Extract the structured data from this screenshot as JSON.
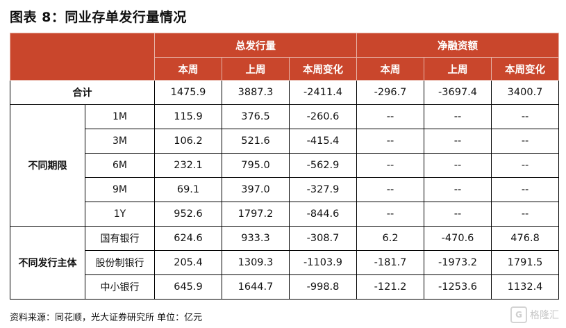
{
  "title": "图表 8：同业存单发行量情况",
  "header": {
    "group1": "总发行量",
    "group2": "净融资额",
    "sub": [
      "本周",
      "上周",
      "本周变化",
      "本周",
      "上周",
      "本周变化"
    ]
  },
  "total_row": {
    "label": "合计",
    "values": [
      "1475.9",
      "3887.3",
      "-2411.4",
      "-296.7",
      "-3697.4",
      "3400.7"
    ]
  },
  "term_group": {
    "label": "不同期限",
    "rows": [
      {
        "label": "1M",
        "values": [
          "115.9",
          "376.5",
          "-260.6",
          "--",
          "--",
          "--"
        ]
      },
      {
        "label": "3M",
        "values": [
          "106.2",
          "521.6",
          "-415.4",
          "--",
          "--",
          "--"
        ]
      },
      {
        "label": "6M",
        "values": [
          "232.1",
          "795.0",
          "-562.9",
          "--",
          "--",
          "--"
        ]
      },
      {
        "label": "9M",
        "values": [
          "69.1",
          "397.0",
          "-327.9",
          "--",
          "--",
          "--"
        ]
      },
      {
        "label": "1Y",
        "values": [
          "952.6",
          "1797.2",
          "-844.6",
          "--",
          "--",
          "--"
        ]
      }
    ]
  },
  "issuer_group": {
    "label": "不同发行主体",
    "rows": [
      {
        "label": "国有银行",
        "values": [
          "624.6",
          "933.3",
          "-308.7",
          "6.2",
          "-470.6",
          "476.8"
        ]
      },
      {
        "label": "股份制银行",
        "values": [
          "205.4",
          "1309.3",
          "-1103.9",
          "-181.7",
          "-1973.2",
          "1791.5"
        ]
      },
      {
        "label": "中小银行",
        "values": [
          "645.9",
          "1644.7",
          "-998.8",
          "-121.2",
          "-1253.6",
          "1132.4"
        ]
      }
    ]
  },
  "source": "资料来源：同花顺，光大证券研究所 单位：亿元",
  "watermark": {
    "badge": "G",
    "text": "格隆汇"
  }
}
